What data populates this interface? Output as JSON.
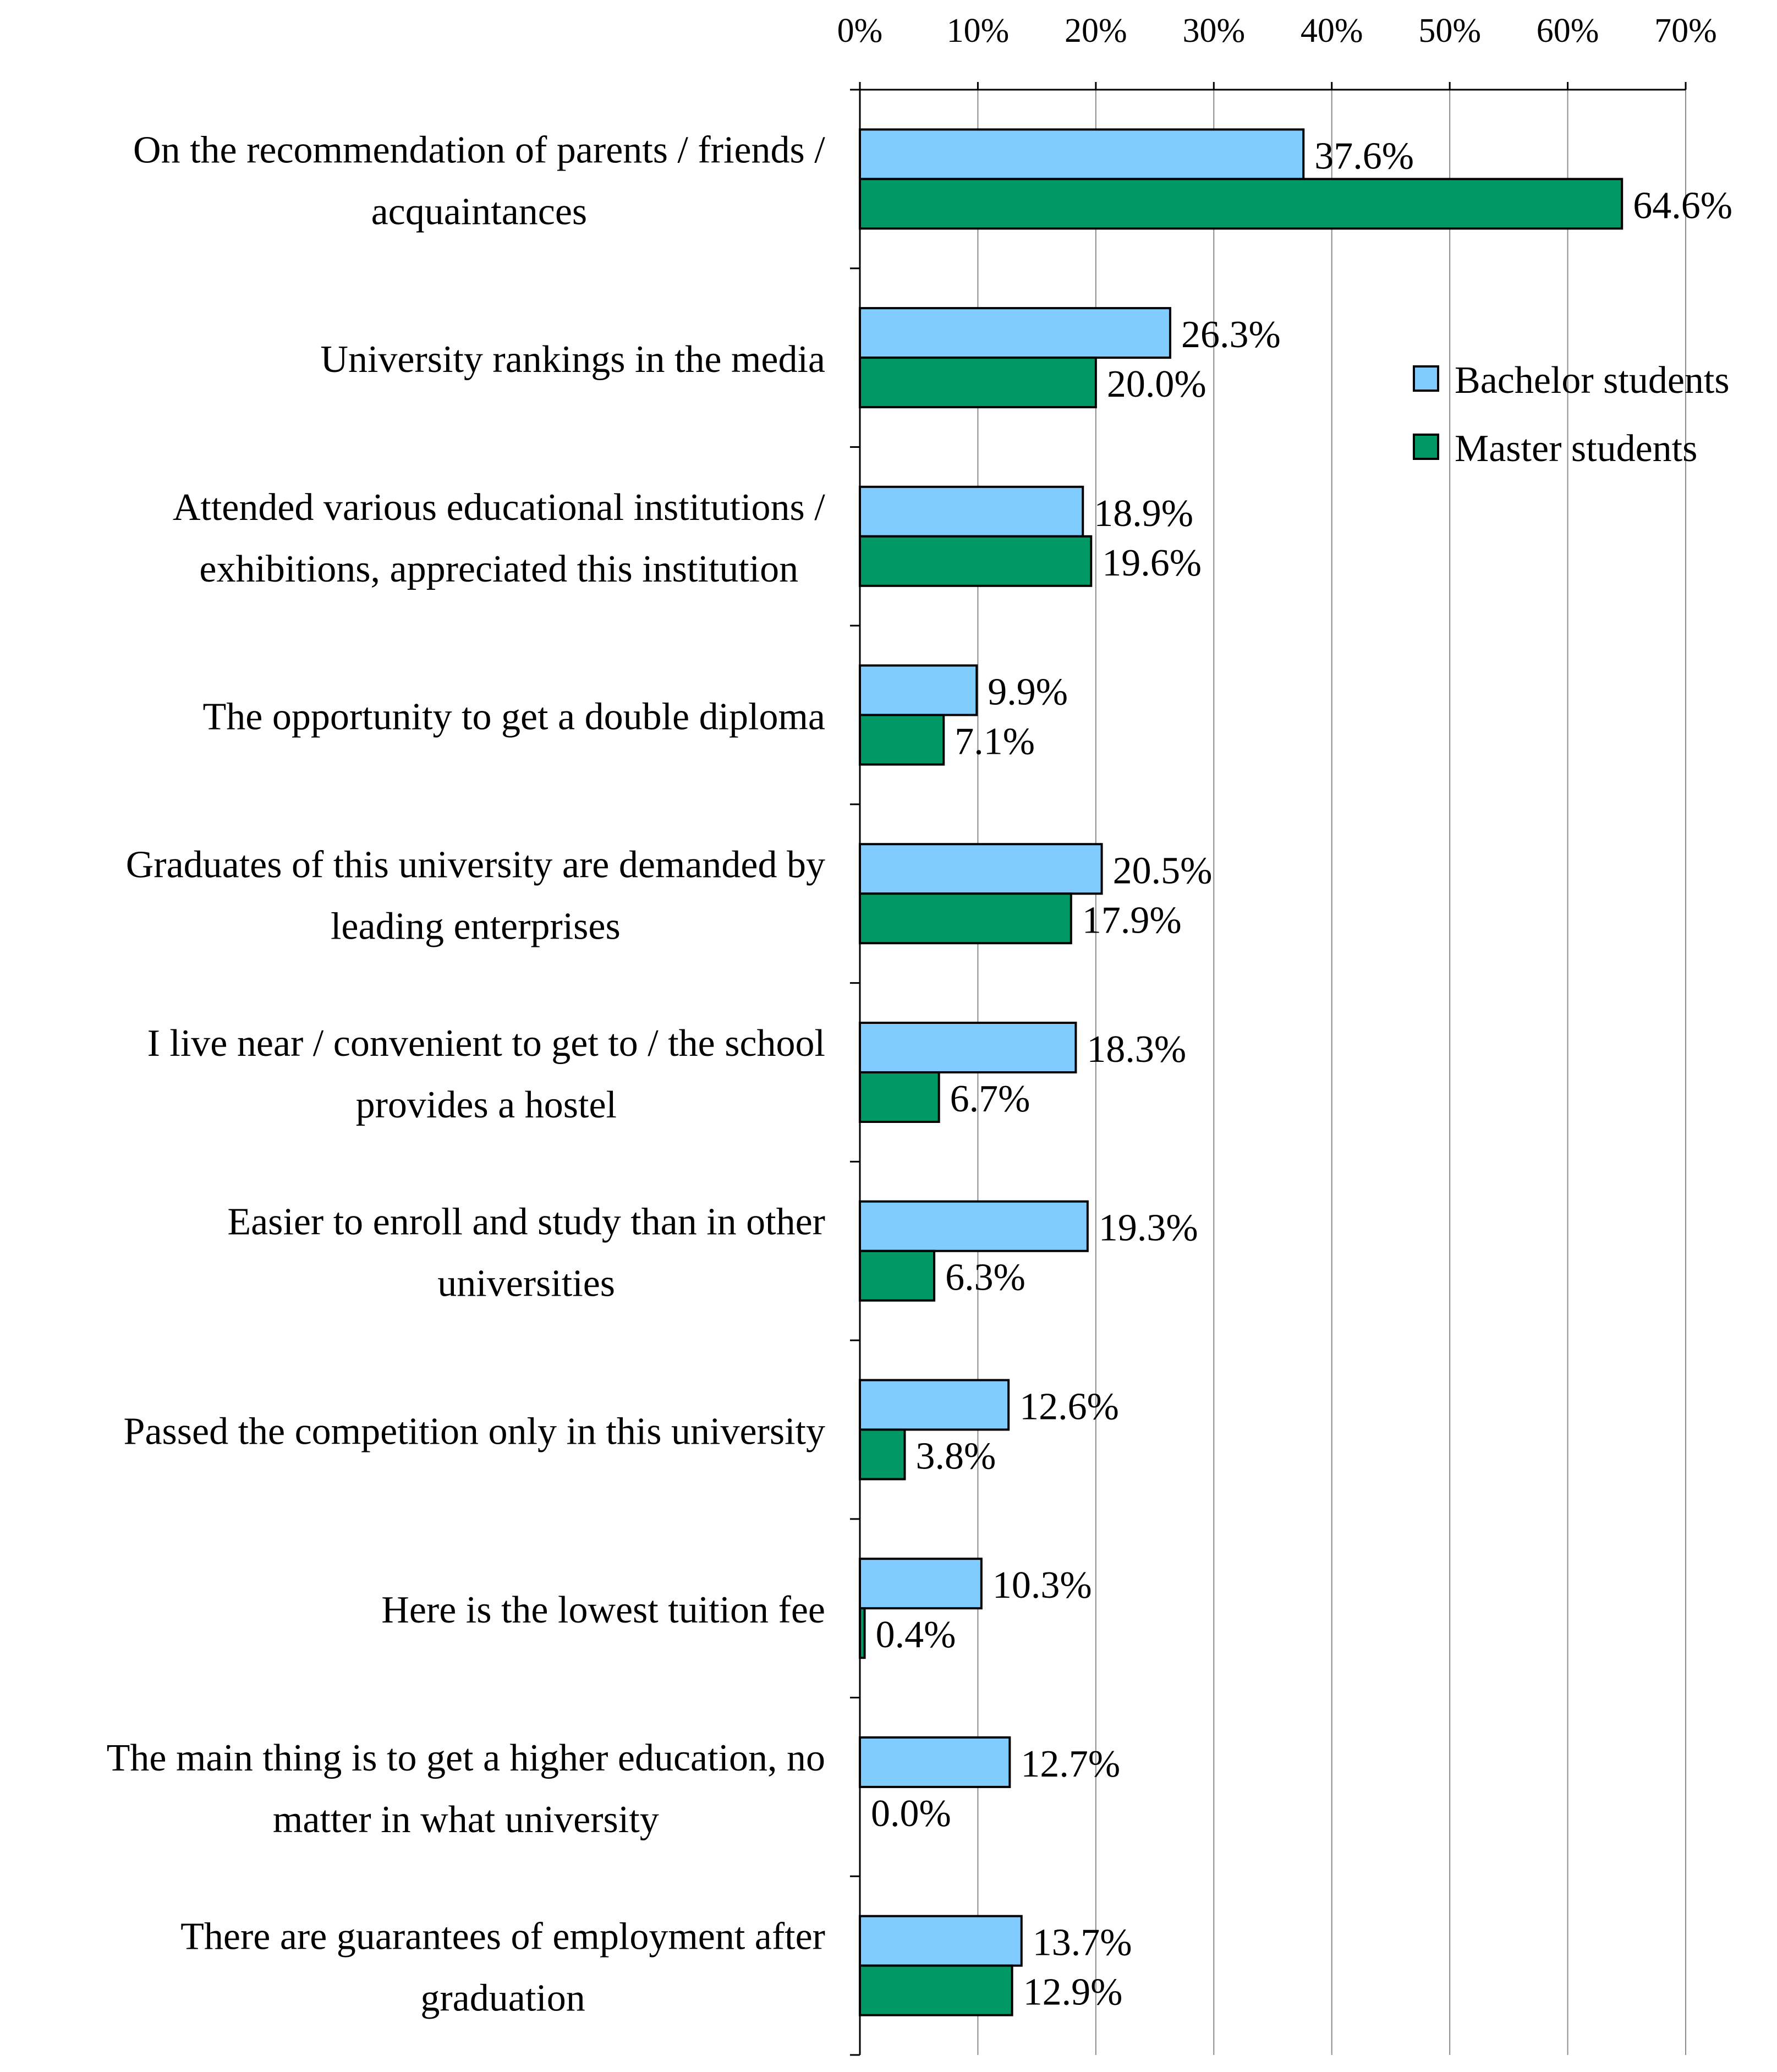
{
  "chart_data": {
    "type": "bar",
    "orientation": "horizontal",
    "title": "",
    "xlabel": "",
    "ylabel": "",
    "xlim": [
      0,
      70
    ],
    "x_ticks": [
      0,
      10,
      20,
      30,
      40,
      50,
      60,
      70
    ],
    "x_tick_labels": [
      "0%",
      "10%",
      "20%",
      "30%",
      "40%",
      "50%",
      "60%",
      "70%"
    ],
    "x_axis_position": "top",
    "grid": true,
    "legend_position": "top-right",
    "categories": [
      [
        "On the recommendation of parents / friends /",
        "acquaintances"
      ],
      [
        "University rankings in the media"
      ],
      [
        "Attended various educational institutions /",
        "exhibitions, appreciated this institution"
      ],
      [
        "The opportunity to get a double diploma"
      ],
      [
        "Graduates of this university are demanded by",
        "leading enterprises"
      ],
      [
        "I live near / convenient to get to / the school",
        "provides a hostel"
      ],
      [
        "Easier to enroll and study than in other",
        "universities"
      ],
      [
        "Passed the competition only in this university"
      ],
      [
        "Here is the lowest tuition fee"
      ],
      [
        "The main thing is to get a higher education, no",
        "matter in what university"
      ],
      [
        "There are guarantees of employment after",
        "graduation"
      ]
    ],
    "series": [
      {
        "name": "Bachelor students",
        "color": "#80CCFF",
        "values": [
          37.6,
          26.3,
          18.9,
          9.9,
          20.5,
          18.3,
          19.3,
          12.6,
          10.3,
          12.7,
          13.7
        ],
        "labels": [
          "37.6%",
          "26.3%",
          "18.9%",
          "9.9%",
          "20.5%",
          "18.3%",
          "19.3%",
          "12.6%",
          "10.3%",
          "12.7%",
          "13.7%"
        ]
      },
      {
        "name": "Master students",
        "color": "#009966",
        "values": [
          64.6,
          20.0,
          19.6,
          7.1,
          17.9,
          6.7,
          6.3,
          3.8,
          0.4,
          0.0,
          12.9
        ],
        "labels": [
          "64.6%",
          "20.0%",
          "19.6%",
          "7.1%",
          "17.9%",
          "6.7%",
          "6.3%",
          "3.8%",
          "0.4%",
          "0.0%",
          "12.9%"
        ]
      }
    ]
  }
}
